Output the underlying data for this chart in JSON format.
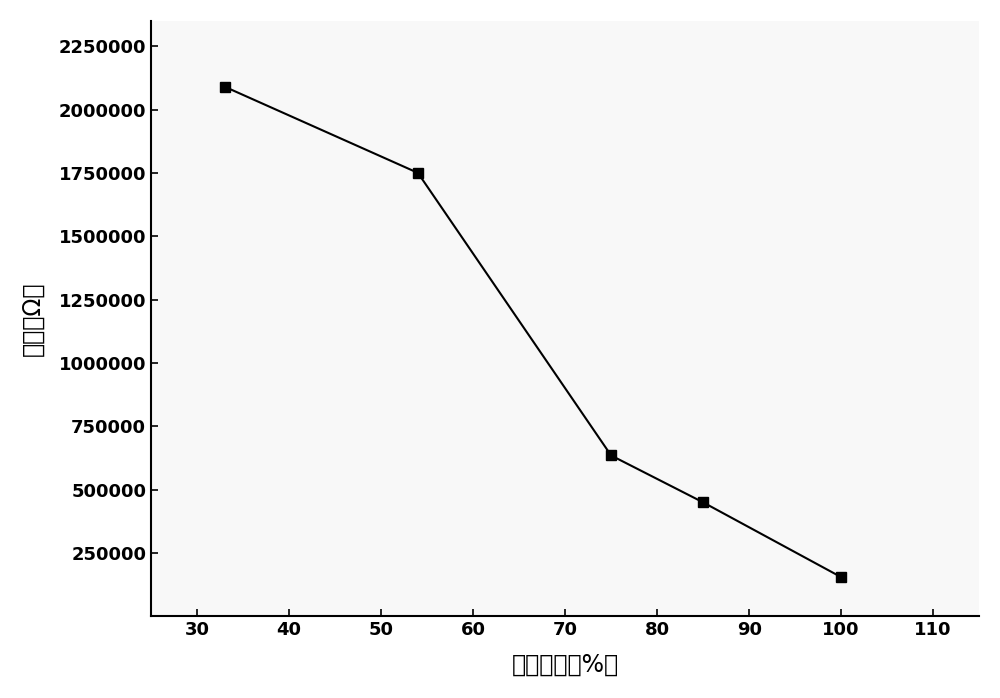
{
  "x": [
    33,
    54,
    75,
    85,
    100
  ],
  "y": [
    2090000,
    1750000,
    635000,
    450000,
    155000
  ],
  "xlabel": "相对湿度（%）",
  "ylabel": "阻抗（Ω）",
  "xlim": [
    25,
    115
  ],
  "ylim": [
    0,
    2350000
  ],
  "xticks": [
    30,
    40,
    50,
    60,
    70,
    80,
    90,
    100,
    110
  ],
  "yticks": [
    250000,
    500000,
    750000,
    1000000,
    1250000,
    1500000,
    1750000,
    2000000,
    2250000
  ],
  "marker": "s",
  "marker_size": 7,
  "line_color": "#000000",
  "marker_color": "#000000",
  "line_width": 1.5,
  "background_color": "#f5f5f5",
  "xlabel_fontsize": 17,
  "ylabel_fontsize": 17,
  "tick_fontsize": 13,
  "tick_fontweight": "bold"
}
